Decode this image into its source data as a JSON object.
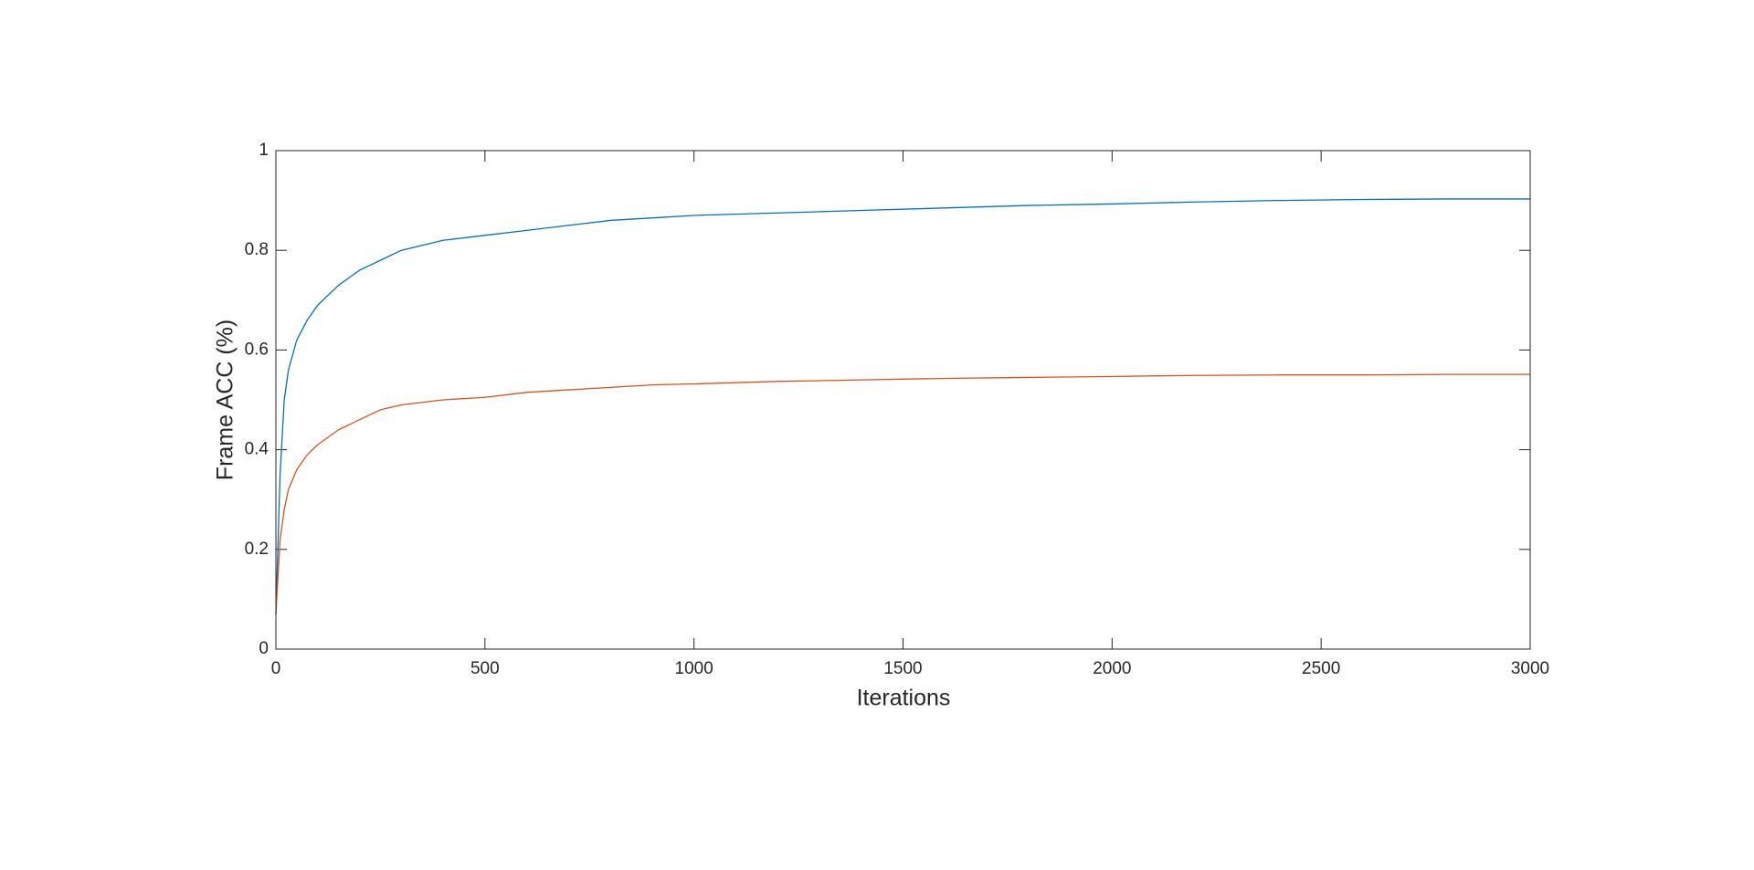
{
  "chart_data": {
    "type": "line",
    "x_label": "Iterations",
    "y_label": "Frame ACC (%)",
    "x": [
      0,
      10,
      20,
      30,
      50,
      75,
      100,
      150,
      200,
      250,
      300,
      400,
      500,
      600,
      700,
      800,
      900,
      1000,
      1200,
      1400,
      1600,
      1800,
      2000,
      2200,
      2400,
      2600,
      2800,
      3000
    ],
    "series": [
      {
        "color": "#0072bd",
        "values": [
          0.07,
          0.35,
          0.5,
          0.56,
          0.62,
          0.66,
          0.69,
          0.73,
          0.76,
          0.78,
          0.8,
          0.82,
          0.83,
          0.84,
          0.85,
          0.86,
          0.865,
          0.87,
          0.875,
          0.88,
          0.885,
          0.89,
          0.893,
          0.897,
          0.9,
          0.902,
          0.903,
          0.903
        ]
      },
      {
        "color": "#d95319",
        "values": [
          0.07,
          0.22,
          0.28,
          0.32,
          0.36,
          0.39,
          0.41,
          0.44,
          0.46,
          0.48,
          0.49,
          0.5,
          0.505,
          0.515,
          0.52,
          0.525,
          0.53,
          0.532,
          0.537,
          0.54,
          0.543,
          0.545,
          0.547,
          0.549,
          0.55,
          0.55,
          0.551,
          0.551
        ]
      }
    ],
    "xlim": [
      0,
      3000
    ],
    "xticks": [
      0,
      500,
      1000,
      1500,
      2000,
      2500,
      3000
    ],
    "ylim": [
      0,
      1
    ],
    "yticks": [
      0,
      0.2,
      0.4,
      0.6,
      0.8,
      1
    ],
    "grid": false
  }
}
